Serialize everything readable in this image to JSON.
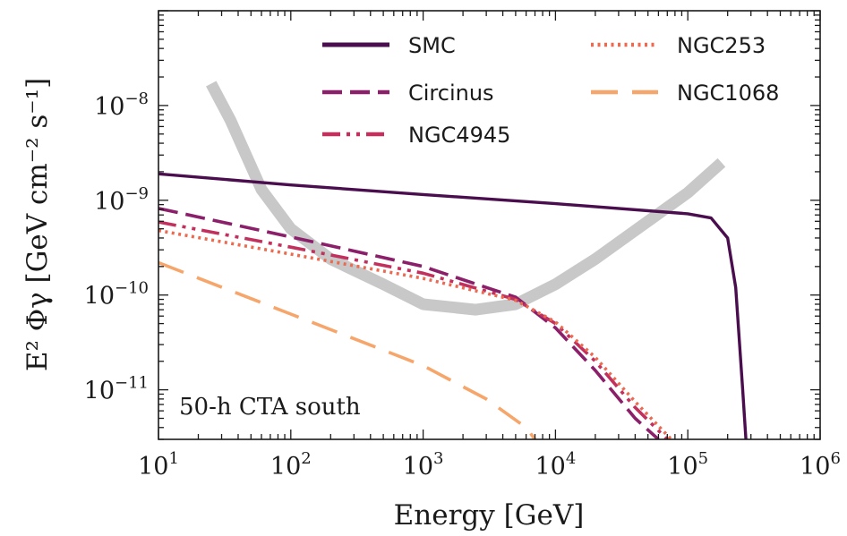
{
  "chart_data": {
    "type": "line",
    "xlabel": "Energy [GeV]",
    "ylabel": "E² Φγ [GeV cm⁻² s⁻¹]",
    "xscale": "log",
    "yscale": "log",
    "xlim": [
      10,
      1000000
    ],
    "ylim": [
      3e-12,
      1e-07
    ],
    "grid": false,
    "legend_placement": "top-right",
    "annotation": "50-h CTA south",
    "x_tick_labels": [
      {
        "base": "10",
        "exp": "1",
        "value": 10
      },
      {
        "base": "10",
        "exp": "2",
        "value": 100
      },
      {
        "base": "10",
        "exp": "3",
        "value": 1000
      },
      {
        "base": "10",
        "exp": "4",
        "value": 10000
      },
      {
        "base": "10",
        "exp": "5",
        "value": 100000
      },
      {
        "base": "10",
        "exp": "6",
        "value": 1000000
      }
    ],
    "y_tick_labels": [
      {
        "base": "10",
        "exp": "−11",
        "value": 1e-11
      },
      {
        "base": "10",
        "exp": "−10",
        "value": 1e-10
      },
      {
        "base": "10",
        "exp": "−9",
        "value": 1e-09
      },
      {
        "base": "10",
        "exp": "−8",
        "value": 1e-08
      }
    ],
    "sensitivity_curve": {
      "color": "#c8c8c8",
      "x": [
        25,
        35,
        60,
        100,
        200,
        500,
        1000,
        2500,
        5000,
        10000,
        20000,
        50000,
        100000,
        180000
      ],
      "y": [
        1.7e-08,
        7e-09,
        1.3e-09,
        5e-10,
        2.4e-10,
        1.3e-10,
        8e-11,
        7e-11,
        8e-11,
        1.3e-10,
        2.4e-10,
        6e-10,
        1.2e-09,
        2.5e-09
      ]
    },
    "series": [
      {
        "name": "SMC",
        "color": "#4a0e4e",
        "dash": "solid",
        "x": [
          10,
          100,
          1000,
          10000,
          100000,
          150000,
          200000,
          230000,
          260000,
          275000
        ],
        "y": [
          1.9e-09,
          1.45e-09,
          1.15e-09,
          9.2e-10,
          7.2e-10,
          6.5e-10,
          4e-10,
          1.2e-10,
          1e-11,
          3e-12
        ]
      },
      {
        "name": "Circinus",
        "color": "#8b1f6a",
        "dash": "dashed",
        "x": [
          10,
          100,
          1000,
          5000,
          10000,
          20000,
          40000,
          60000
        ],
        "y": [
          8.2e-10,
          4.1e-10,
          2e-10,
          9.5e-11,
          4.5e-11,
          1.6e-11,
          5e-12,
          3e-12
        ]
      },
      {
        "name": "NGC4945",
        "color": "#c2305d",
        "dash": "dashdotdot",
        "x": [
          10,
          100,
          1000,
          5000,
          10000,
          20000,
          40000,
          70000
        ],
        "y": [
          5.9e-10,
          3.2e-10,
          1.7e-10,
          9e-11,
          5e-11,
          2e-11,
          6.5e-12,
          3e-12
        ]
      },
      {
        "name": "NGC253",
        "color": "#ec6a50",
        "dash": "dotted",
        "x": [
          10,
          100,
          1000,
          5000,
          10000,
          20000,
          40000,
          75000
        ],
        "y": [
          4.8e-10,
          2.7e-10,
          1.5e-10,
          8.8e-11,
          5.2e-11,
          2.2e-11,
          7.5e-12,
          3e-12
        ]
      },
      {
        "name": "NGC1068",
        "color": "#f6a66b",
        "dash": "longdash",
        "x": [
          10,
          100,
          1000,
          3000,
          6000,
          7000
        ],
        "y": [
          2.2e-10,
          6.3e-11,
          1.8e-11,
          8e-12,
          4e-12,
          3e-12
        ]
      }
    ]
  }
}
